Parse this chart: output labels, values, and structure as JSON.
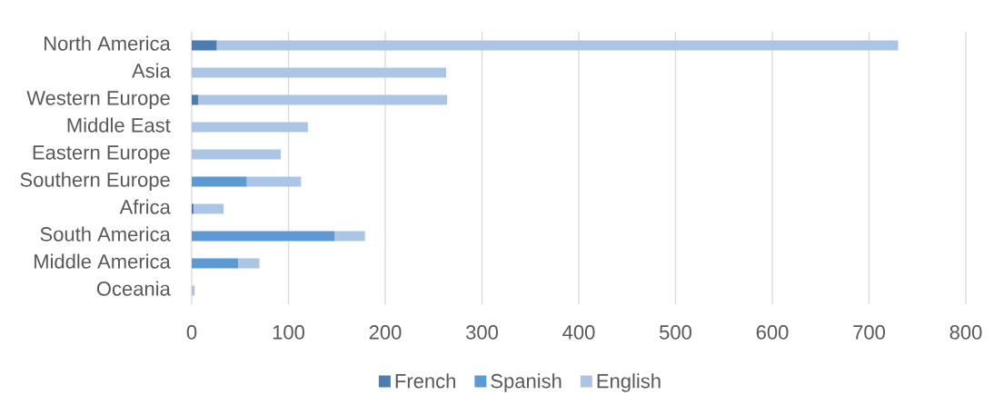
{
  "chart_data": {
    "type": "bar",
    "orientation": "horizontal",
    "stacked": true,
    "categories": [
      "North America",
      "Asia",
      "Western Europe",
      "Middle East",
      "Eastern Europe",
      "Southern Europe",
      "Africa",
      "South America",
      "Middle America",
      "Oceania"
    ],
    "series": [
      {
        "name": "French",
        "color": "#4a7eb3",
        "values": [
          26,
          0,
          7,
          0,
          0,
          0,
          2,
          0,
          0,
          0
        ]
      },
      {
        "name": "Spanish",
        "color": "#5b9bd5",
        "values": [
          0,
          0,
          0,
          0,
          0,
          57,
          0,
          148,
          48,
          0
        ]
      },
      {
        "name": "English",
        "color": "#abc5e6",
        "values": [
          704,
          263,
          257,
          120,
          92,
          56,
          31,
          31,
          22,
          3
        ]
      }
    ],
    "xlim": [
      0,
      800
    ],
    "xticks": [
      0,
      100,
      200,
      300,
      400,
      500,
      600,
      700,
      800
    ],
    "grid": "x",
    "legend": "bottom"
  }
}
